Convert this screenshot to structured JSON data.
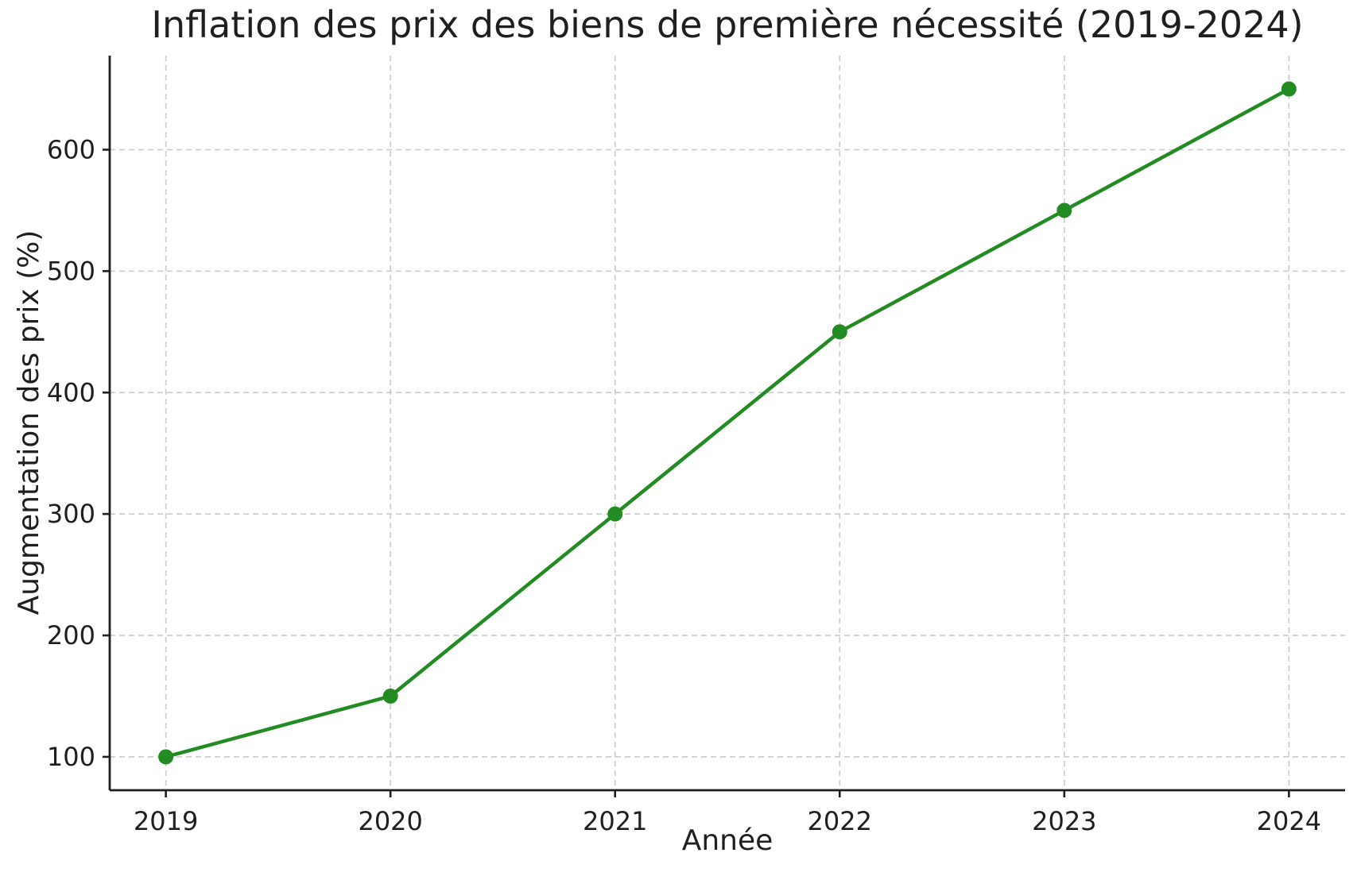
{
  "chart_data": {
    "type": "line",
    "title": "Inflation des prix des biens de première nécessité (2019-2024)",
    "xlabel": "Année",
    "ylabel": "Augmentation des prix (%)",
    "categories": [
      "2019",
      "2020",
      "2021",
      "2022",
      "2023",
      "2024"
    ],
    "x": [
      2019,
      2020,
      2021,
      2022,
      2023,
      2024
    ],
    "series": [
      {
        "name": "Augmentation des prix",
        "values": [
          100,
          150,
          300,
          450,
          550,
          650
        ]
      }
    ],
    "yticks": [
      100,
      200,
      300,
      400,
      500,
      600
    ],
    "xlim": [
      2018.75,
      2024.25
    ],
    "ylim": [
      72.5,
      677.5
    ],
    "grid": "dashed",
    "legend_position": "none",
    "line_color": "#228B22",
    "marker": "circle",
    "marker_radius": 9.5,
    "grid_color": "#c9c9c9",
    "text_color": "#1f1f1f",
    "background_color": "#ffffff"
  }
}
